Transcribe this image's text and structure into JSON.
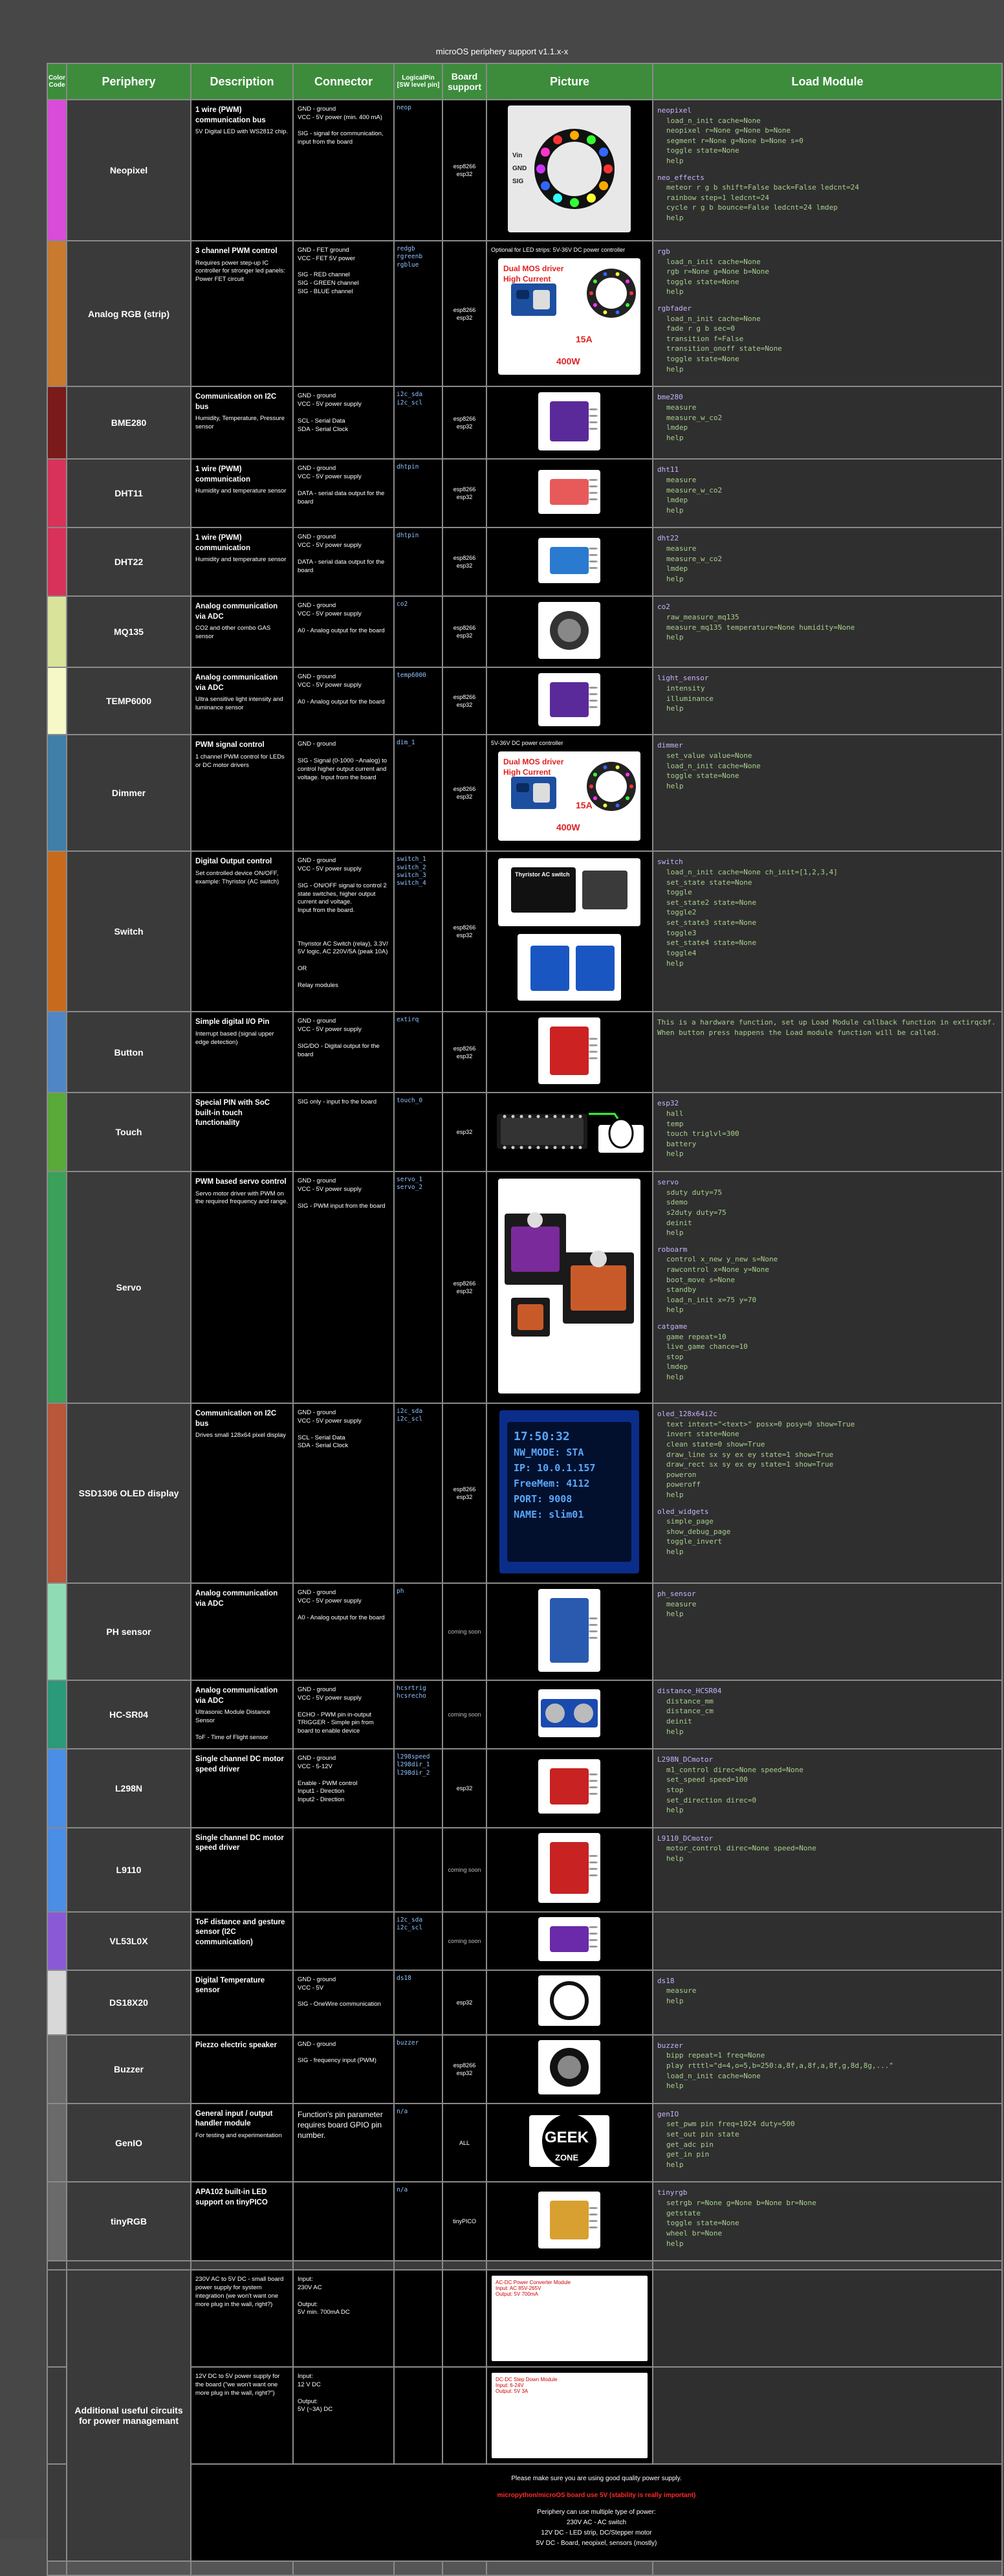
{
  "page_title": "microOS periphery support v1.1.x-x",
  "headers": {
    "color_code": "Color Code",
    "periphery": "Periphery",
    "description": "Description",
    "connector": "Connector",
    "logical_pin": "LogicalPin\n[SW level pin]",
    "board_support": "Board support",
    "picture": "Picture",
    "load_module": "Load Module"
  },
  "rows": [
    {
      "name": "Neopixel",
      "color": "#d94bd9",
      "desc_title": "1 wire (PWM) communication bus",
      "desc_body": "5V Digital LED with WS2812 chip.",
      "connector": "GND - ground\nVCC - 5V power (min. 400 mA)\n\nSIG - signal for communication, input from the board",
      "pins": "neop",
      "board": "esp8266\nesp32",
      "pic_caption": "",
      "load": [
        {
          "t": "neopixel",
          "l": [
            "load_n_init cache=None",
            "neopixel r=None g=None b=None",
            "segment r=None g=None b=None s=0",
            "toggle state=None",
            "help"
          ]
        },
        {
          "t": "neo_effects",
          "l": [
            "meteor r g b shift=False back=False ledcnt=24",
            "rainbow step=1 ledcnt=24",
            "cycle r g b bounce=False ledcnt=24 lmdep",
            "help"
          ]
        }
      ]
    },
    {
      "name": "Analog RGB (strip)",
      "color": "#c87a2e",
      "desc_title": "3 channel PWM control",
      "desc_body": "Requires power step-up IC controller for stronger led panels: Power FET circuit",
      "connector": "GND - FET ground\nVCC - FET 5V power\n\nSIG - RED channel\nSIG - GREEN channel\nSIG - BLUE channel",
      "pins": "redgb\nrgreenb\nrgblue",
      "board": "esp8266\nesp32",
      "pic_caption": "Optional for LED strips: 5V-36V DC power controller",
      "load": [
        {
          "t": "rgb",
          "l": [
            "load_n_init cache=None",
            "rgb r=None g=None b=None",
            "toggle state=None",
            "help"
          ]
        },
        {
          "t": "rgbfader",
          "l": [
            "load_n_init cache=None",
            "fade r g b sec=0",
            "transition f=False",
            "transition_onoff state=None",
            "toggle state=None",
            "help"
          ]
        }
      ]
    },
    {
      "name": "BME280",
      "color": "#7a1a1a",
      "desc_title": "Communication on I2C bus",
      "desc_body": "Humidity, Temperature, Pressure sensor",
      "connector": "GND - ground\nVCC - 5V power supply\n\nSCL - Serial Data\nSDA - Serial Clock",
      "pins": "i2c_sda\ni2c_scl",
      "board": "esp8266\nesp32",
      "pic_caption": "",
      "load": [
        {
          "t": "bme280",
          "l": [
            "measure",
            "measure_w_co2",
            "lmdep",
            "help"
          ]
        }
      ]
    },
    {
      "name": "DHT11",
      "color": "#d9325a",
      "desc_title": "1 wire (PWM) communication",
      "desc_body": "Humidity and temperature sensor",
      "connector": "GND - ground\nVCC - 5V power supply\n\nDATA - serial data output for the board",
      "pins": "dhtpin",
      "board": "esp8266\nesp32",
      "pic_caption": "",
      "load": [
        {
          "t": "dht11",
          "l": [
            "measure",
            "measure_w_co2",
            "lmdep",
            "help"
          ]
        }
      ]
    },
    {
      "name": "DHT22",
      "color": "#d9325a",
      "desc_title": "1 wire (PWM) communication",
      "desc_body": "Humidity and temperature sensor",
      "connector": "GND - ground\nVCC - 5V power supply\n\nDATA - serial data output for the board",
      "pins": "dhtpin",
      "board": "esp8266\nesp32",
      "pic_caption": "",
      "load": [
        {
          "t": "dht22",
          "l": [
            "measure",
            "measure_w_co2",
            "lmdep",
            "help"
          ]
        }
      ]
    },
    {
      "name": "MQ135",
      "color": "#d9e39a",
      "desc_title": "Analog communication via ADC",
      "desc_body": "CO2 and other combo GAS sensor",
      "connector": "GND - ground\nVCC - 5V power supply\n\nA0 - Analog output for the board",
      "pins": "co2",
      "board": "esp8266\nesp32",
      "pic_caption": "",
      "load": [
        {
          "t": "co2",
          "l": [
            "raw_measure_mq135",
            "measure_mq135 temperature=None humidity=None",
            "help"
          ]
        }
      ]
    },
    {
      "name": "TEMP6000",
      "color": "#f6f8c8",
      "desc_title": "Analog communication via ADC",
      "desc_body": "Ultra sensitive light intensity and luminance sensor",
      "connector": "GND - ground\nVCC - 5V power supply\n\nA0 - Analog output for the board",
      "pins": "temp6000",
      "board": "esp8266\nesp32",
      "pic_caption": "",
      "load": [
        {
          "t": "light_sensor",
          "l": [
            "intensity",
            "illuminance",
            "help"
          ]
        }
      ]
    },
    {
      "name": "Dimmer",
      "color": "#3f7fa8",
      "desc_title": "PWM signal control",
      "desc_body": "1 channel PWM control for LEDs or DC motor drivers",
      "connector": "GND - ground\n\nSIG - Signal (0-1000 ~Analog) to control higher output current and voltage. Input from the board",
      "pins": "dim_1",
      "board": "esp8266\nesp32",
      "pic_caption": "5V-36V DC power controller",
      "load": [
        {
          "t": "dimmer",
          "l": [
            "set_value value=None",
            "load_n_init cache=None",
            "toggle state=None",
            "help"
          ]
        }
      ]
    },
    {
      "name": "Switch",
      "color": "#c86a1e",
      "desc_title": "Digital Output control",
      "desc_body": "Set controlled device ON/OFF, example: Thyristor (AC switch)",
      "connector": "GND - ground\nVCC - 5V power supply\n\nSIG - ON/OFF signal to control 2 state switches, higher output current and voltage.\nInput from the board.\n\n\n\nThyristor AC Switch (relay), 3.3V/ 5V logic, AC 220V/5A (peak 10A)\n\nOR\n\nRelay modules",
      "pins": "switch_1\nswitch_2\nswitch_3\nswitch_4",
      "board": "esp8266\nesp32",
      "pic_caption": "",
      "load": [
        {
          "t": "switch",
          "l": [
            "load_n_init cache=None ch_init=[1,2,3,4]",
            "set_state state=None",
            "toggle",
            "set_state2 state=None",
            "toggle2",
            "set_state3 state=None",
            "toggle3",
            "set_state4 state=None",
            "toggle4",
            "help"
          ]
        }
      ]
    },
    {
      "name": "Button",
      "color": "#4f86c6",
      "desc_title": "Simple digital I/O Pin",
      "desc_body": "Interrupt based (signal upper edge detection)",
      "connector": "GND - ground\nVCC - 5V power supply\n\nSIG/DO - Digital output for the board",
      "pins": "extirq",
      "board": "esp8266\nesp32",
      "pic_caption": "",
      "load": [
        {
          "t": "",
          "note": "This is a hardware function, set up Load Module callback function in extirqcbf. When button press happens the Load module function will be called."
        }
      ]
    },
    {
      "name": "Touch",
      "color": "#5aaa3a",
      "desc_title": "Special PIN with SoC built-in touch functionality",
      "desc_body": "",
      "connector": "SIG only - input fro the board",
      "pins": "touch_0",
      "board": "esp32",
      "pic_caption": "",
      "load": [
        {
          "t": "esp32",
          "l": [
            "hall",
            "temp",
            "touch triglvl=300",
            "battery",
            "help"
          ]
        }
      ]
    },
    {
      "name": "Servo",
      "color": "#3aa05a",
      "desc_title": "PWM based servo control",
      "desc_body": "Servo motor driver with PWM on the required frequency and range.",
      "connector": "GND - ground\nVCC - 5V power supply\n\nSIG - PWM input from the board",
      "pins": "servo_1\nservo_2",
      "board": "esp8266\nesp32",
      "pic_caption": "",
      "load": [
        {
          "t": "servo",
          "l": [
            "sduty duty=75",
            "sdemo",
            "s2duty duty=75",
            "deinit",
            "help"
          ]
        },
        {
          "t": "roboarm",
          "l": [
            "control x_new y_new s=None",
            "rawcontrol x=None y=None",
            "boot_move s=None",
            "standby",
            "load_n_init x=75 y=70",
            "help"
          ]
        },
        {
          "t": "catgame",
          "l": [
            "game repeat=10",
            "live_game chance=10",
            "stop",
            "lmdep",
            "help"
          ]
        }
      ]
    },
    {
      "name": "SSD1306 OLED display",
      "color": "#b8573a",
      "desc_title": "Communication on I2C bus",
      "desc_body": "Drives small 128x64 pixel display",
      "connector": "GND - ground\nVCC - 5V power supply\n\nSCL - Serial Data\nSDA - Serial Clock",
      "pins": "i2c_sda\ni2c_scl",
      "board": "esp8266\nesp32",
      "pic_caption": "",
      "oled": [
        "17:50:32",
        "NW_MODE: STA",
        "IP: 10.0.1.157",
        "FreeMem: 4112",
        "PORT: 9008",
        "NAME: slim01"
      ],
      "load": [
        {
          "t": "oled_128x64i2c",
          "l": [
            "text intext=\"<text>\" posx=0 posy=0 show=True",
            "invert state=None",
            "clean state=0 show=True",
            "draw_line sx sy ex ey state=1 show=True",
            "draw_rect sx sy ex ey state=1 show=True",
            "poweron",
            "poweroff",
            "help"
          ]
        },
        {
          "t": "oled_widgets",
          "l": [
            "simple_page",
            "show_debug_page",
            "toggle_invert",
            "help"
          ]
        }
      ]
    },
    {
      "name": "PH sensor",
      "color": "#8fdcb4",
      "desc_title": "Analog communication via ADC",
      "desc_body": "",
      "connector": "GND - ground\nVCC - 5V power supply\n\nA0 - Analog output for the board",
      "pins": "ph",
      "board": "coming soon",
      "dim": true,
      "pic_caption": "",
      "load": [
        {
          "t": "ph_sensor",
          "l": [
            "measure",
            "help"
          ]
        }
      ]
    },
    {
      "name": "HC-SR04",
      "color": "#2a9a7a",
      "desc_title": "Analog communication via ADC",
      "desc_body": "Ultrasonic Module Distance Sensor\n\nToF - Time of Flight sensor",
      "connector": "GND - ground\nVCC - 5V power supply\n\nECHO - PWM pin in-output\nTRIGGER - Simple pin from board to enable device",
      "pins": "hcsrtrig\nhcsrecho",
      "board": "coming soon",
      "dim": true,
      "pic_caption": "",
      "load": [
        {
          "t": "distance_HCSR04",
          "l": [
            "distance_mm",
            "distance_cm",
            "deinit",
            "help"
          ]
        }
      ]
    },
    {
      "name": "L298N",
      "color": "#4a8ee6",
      "desc_title": "Single channel DC motor speed driver",
      "desc_body": "",
      "connector": "GND - ground\nVCC - 5-12V\n\nEnable - PWM control\nInput1 - Direction\nInput2 - Direction",
      "pins": "l298speed\nl298dir_1\nl298dir_2",
      "board": "esp32",
      "pic_caption": "",
      "load": [
        {
          "t": "L298N_DCmotor",
          "l": [
            "m1_control direc=None speed=None",
            "set_speed speed=100",
            "stop",
            "set_direction direc=0",
            "help"
          ]
        }
      ]
    },
    {
      "name": "L9110",
      "color": "#4a8ee6",
      "desc_title": "Single channel DC motor speed driver",
      "desc_body": "",
      "connector": "",
      "pins": "",
      "board": "coming soon",
      "dim": true,
      "pic_caption": "",
      "load": [
        {
          "t": "L9110_DCmotor",
          "l": [
            "motor_control direc=None speed=None",
            "help"
          ]
        }
      ]
    },
    {
      "name": "VL53L0X",
      "color": "#8a5ad6",
      "desc_title": "ToF distance and gesture sensor (I2C communication)",
      "desc_body": "",
      "connector": "",
      "pins": "i2c_sda\ni2c_scl",
      "board": "coming soon",
      "dim": true,
      "pic_caption": "",
      "load": []
    },
    {
      "name": "DS18X20",
      "color": "#d8d8d8",
      "desc_title": "Digital Temperature sensor",
      "desc_body": "",
      "connector": "GND - ground\nVCC - 5V\n\nSIG - OneWire communication",
      "pins": "ds18",
      "board": "esp32",
      "pic_caption": "",
      "load": [
        {
          "t": "ds18",
          "l": [
            "measure",
            "help"
          ]
        }
      ]
    },
    {
      "name": "Buzzer",
      "color": "#6a6a6a",
      "desc_title": "Piezzo electric speaker",
      "desc_body": "",
      "connector": "GND - ground\n\nSIG - frequency input (PWM)",
      "pins": "buzzer",
      "board": "esp8266\nesp32",
      "pic_caption": "",
      "load": [
        {
          "t": "buzzer",
          "l": [
            "bipp repeat=1 freq=None",
            "play rtttl=\"d=4,o=5,b=250:a,8f,a,8f,a,8f,g,8d,8g,...\"",
            "load_n_init cache=None",
            "help"
          ]
        }
      ]
    },
    {
      "name": "GenIO",
      "color": "#6a6a6a",
      "desc_title": "General input / output handler module",
      "desc_body": "For testing and experimentation",
      "connector": "Function's pin parameter requires board GPIO pin number.",
      "pins": "n/a",
      "board": "ALL",
      "pic_caption": "",
      "load": [
        {
          "t": "genIO",
          "l": [
            "set_pwm pin freq=1024 duty=500",
            "set_out pin state",
            "get_adc pin",
            "get_in pin",
            "help"
          ]
        }
      ]
    },
    {
      "name": "tinyRGB",
      "color": "#6a6a6a",
      "desc_title": "APA102 built-in LED support on tinyPICO",
      "desc_body": "",
      "connector": "",
      "pins": "n/a",
      "board": "tinyPICO",
      "pic_caption": "",
      "load": [
        {
          "t": "tinyrgb",
          "l": [
            "setrgb r=None g=None b=None br=None",
            "getstate",
            "toggle state=None",
            "wheel br=None",
            "help"
          ]
        }
      ]
    }
  ],
  "power": {
    "name": "Additional useful circuits for power managemant",
    "items": [
      {
        "desc": "230V AC to 5V DC - small board power supply for system integration (we won't want one more plug in the wall, right?)",
        "conn": "Input:\n230V AC\n\nOutput:\n5V min. 700mA DC",
        "pic": "AC-DC Power Converter Module\nInput: AC 85V-265V\nOutput: 5V 700mA"
      },
      {
        "desc": "12V DC to 5V power supply for the board (\"we won't want one more plug in the wall, right?\")",
        "conn": "Input:\n12 V DC\n\nOutput:\n5V (~3A) DC",
        "pic": "DC-DC Step Down Module\nInput: 6-24V\nOutput: 5V 3A"
      }
    ],
    "notes": {
      "n1": "Please make sure you are using good quality power supply.",
      "n2": "micropython/microOS board use 5V (stability is really important)",
      "n3": "Periphery can use multiple type of power:",
      "n4": "230V AC - AC switch",
      "n5": "12V DC - LED strip, DC/Stepper motor",
      "n6": "5V DC - Board, neopixel, sensors (mostly)"
    }
  },
  "picture_labels": {
    "rgb_label1": "Dual MOS driver",
    "rgb_label2": "High Current",
    "amp": "15A",
    "watt": "400W",
    "thyristor": "Thyristor AC switch",
    "geek1": "GEEK",
    "geek2": "ZONE",
    "neo_vin": "Vin",
    "neo_gnd": "GND",
    "neo_sig": "SIG"
  }
}
